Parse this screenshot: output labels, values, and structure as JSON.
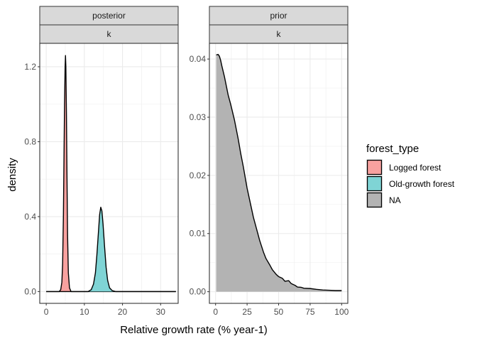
{
  "chart_data": [
    {
      "type": "area",
      "panel": "posterior",
      "strip": [
        "posterior",
        "k"
      ],
      "xlim": [
        -1.7,
        34.6
      ],
      "ylim": [
        -0.063,
        1.325
      ],
      "x_ticks": [
        0,
        10,
        20,
        30
      ],
      "y_ticks": [
        0.0,
        0.4,
        0.8,
        1.2
      ],
      "y_tick_labels": [
        "0.0",
        "0.4",
        "0.8",
        "1.2"
      ],
      "series": [
        {
          "name": "Logged forest",
          "color": "#F8A19F",
          "x": [
            0,
            3.4,
            3.8,
            4.1,
            4.3,
            4.5,
            4.65,
            4.8,
            4.95,
            5.05,
            5.15,
            5.3,
            5.45,
            5.6,
            5.8,
            6.1,
            6.5,
            34
          ],
          "y": [
            0,
            0,
            0.01,
            0.05,
            0.15,
            0.4,
            0.7,
            1.0,
            1.2,
            1.26,
            1.2,
            0.95,
            0.6,
            0.3,
            0.1,
            0.02,
            0,
            0
          ]
        },
        {
          "name": "Old-growth forest",
          "color": "#7FD4D5",
          "x": [
            0,
            11,
            11.8,
            12.4,
            12.9,
            13.3,
            13.7,
            14.0,
            14.3,
            14.6,
            14.9,
            15.3,
            15.7,
            16.1,
            16.6,
            17.3,
            18.2,
            34
          ],
          "y": [
            0,
            0,
            0.01,
            0.04,
            0.1,
            0.2,
            0.32,
            0.41,
            0.45,
            0.43,
            0.36,
            0.24,
            0.13,
            0.06,
            0.02,
            0.005,
            0,
            0
          ]
        }
      ]
    },
    {
      "type": "area",
      "panel": "prior",
      "strip": [
        "prior",
        "k"
      ],
      "xlim": [
        -4.9,
        104.9
      ],
      "ylim": [
        -0.002,
        0.0427
      ],
      "x_ticks": [
        0,
        25,
        50,
        75,
        100
      ],
      "y_ticks": [
        0.0,
        0.01,
        0.02,
        0.03,
        0.04
      ],
      "y_tick_labels": [
        "0.00",
        "0.01",
        "0.02",
        "0.03",
        "0.04"
      ],
      "series": [
        {
          "name": "NA",
          "color": "#B3B3B3",
          "x": [
            0.5,
            2,
            3,
            4,
            5,
            7,
            10,
            12,
            15,
            18,
            20,
            22,
            25,
            28,
            30,
            33,
            35,
            38,
            40,
            43,
            45,
            48,
            50,
            53,
            55,
            58,
            60,
            63,
            65,
            68,
            70,
            75,
            80,
            85,
            90,
            95,
            100
          ],
          "y": [
            0.0407,
            0.0408,
            0.0405,
            0.0398,
            0.0388,
            0.037,
            0.0338,
            0.0322,
            0.0295,
            0.0262,
            0.0237,
            0.0215,
            0.0178,
            0.0148,
            0.0128,
            0.0104,
            0.0088,
            0.0068,
            0.0057,
            0.0046,
            0.0038,
            0.003,
            0.0026,
            0.0023,
            0.0018,
            0.0019,
            0.0014,
            0.0011,
            0.0008,
            0.00075,
            0.0006,
            0.00055,
            0.0004,
            0.0003,
            0.00025,
            0.0002,
            0.0002
          ]
        }
      ]
    }
  ],
  "xlabel": "Relative growth rate (% year-1)",
  "ylabel": "density",
  "legend": {
    "title": "forest_type",
    "position": "right",
    "items": [
      {
        "label": "Logged forest",
        "color": "#F8A19F"
      },
      {
        "label": "Old-growth forest",
        "color": "#7FD4D5"
      },
      {
        "label": "NA",
        "color": "#B3B3B3"
      }
    ]
  }
}
